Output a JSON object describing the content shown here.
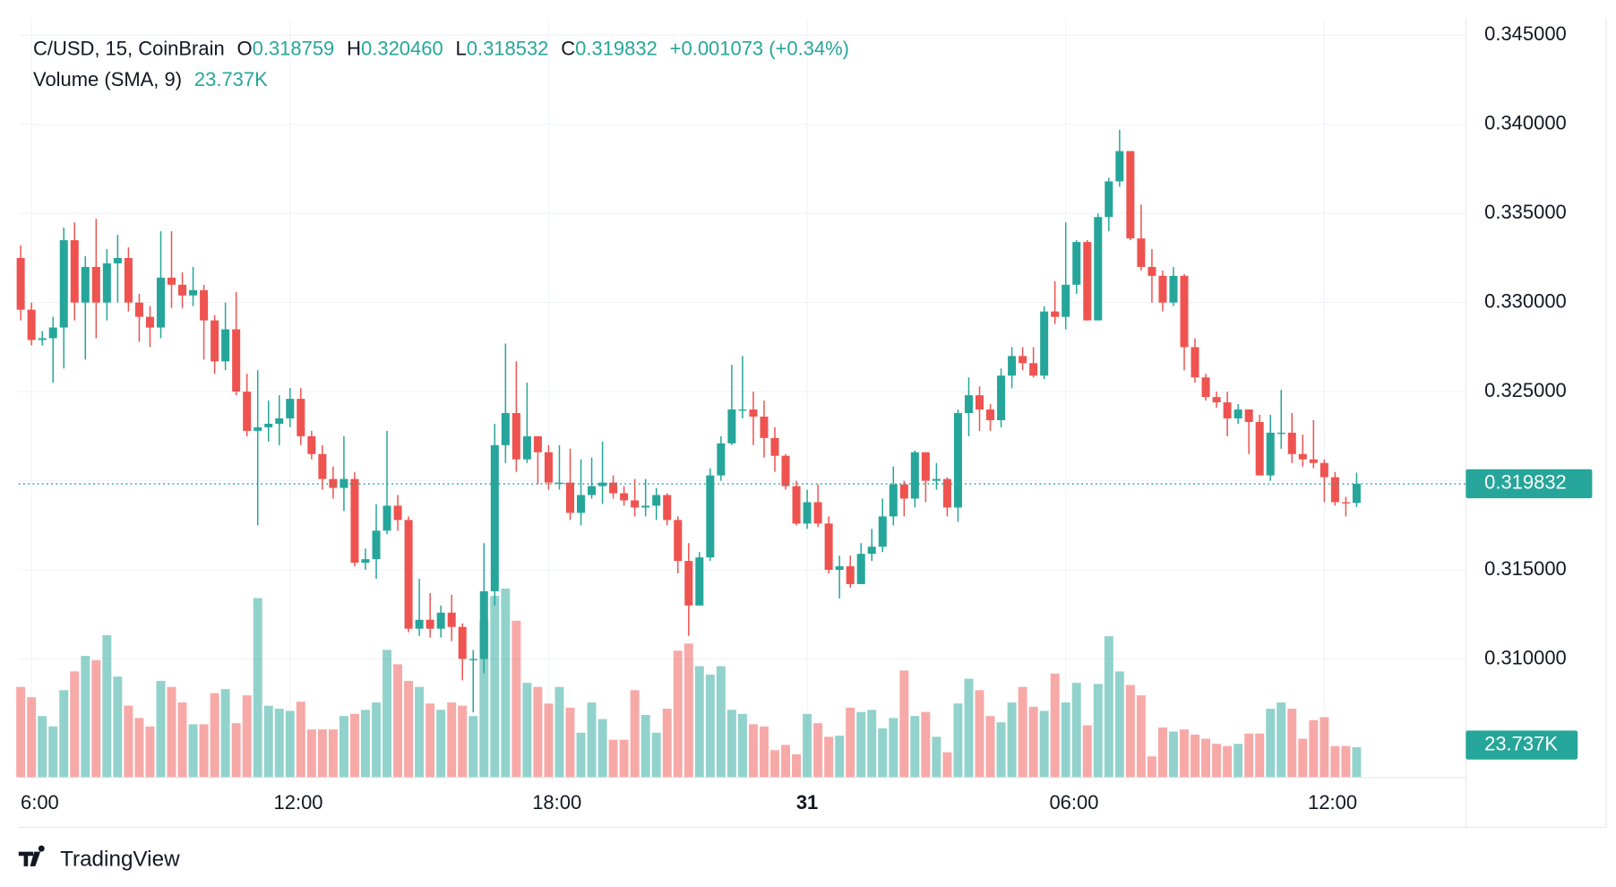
{
  "chart_data": {
    "type": "candlestick",
    "legend": {
      "symbol": "C/USD, 15, CoinBrain",
      "ohlc": [
        {
          "key": "O",
          "value": "0.318759"
        },
        {
          "key": "H",
          "value": "0.320460"
        },
        {
          "key": "L",
          "value": "0.318532"
        },
        {
          "key": "C",
          "value": "0.319832"
        }
      ],
      "change": "+0.001073 (+0.34%)",
      "volume_label": "Volume (SMA, 9)",
      "volume_value": "23.737K"
    },
    "last_price_label": "0.319832",
    "last_price": 0.319832,
    "volume_badge": "23.737K",
    "up_color": "#26a69a",
    "down_color": "#ef5350",
    "grid": true,
    "ylim": [
      0.30337,
      0.34593
    ],
    "yticks": [
      {
        "value": 0.31,
        "label": "0.310000"
      },
      {
        "value": 0.315,
        "label": "0.315000"
      },
      {
        "value": 0.32,
        "label": "0.320000"
      },
      {
        "value": 0.325,
        "label": "0.325000"
      },
      {
        "value": 0.33,
        "label": "0.330000"
      },
      {
        "value": 0.335,
        "label": "0.335000"
      },
      {
        "value": 0.34,
        "label": "0.340000"
      },
      {
        "value": 0.345,
        "label": "0.345000"
      }
    ],
    "categories": [
      null,
      "6:00",
      null,
      null,
      null,
      null,
      null,
      null,
      null,
      null,
      null,
      null,
      null,
      null,
      null,
      null,
      null,
      null,
      null,
      null,
      null,
      null,
      null,
      null,
      null,
      "12:00",
      null,
      null,
      null,
      null,
      null,
      null,
      null,
      null,
      null,
      null,
      null,
      null,
      null,
      null,
      null,
      null,
      null,
      null,
      null,
      null,
      null,
      null,
      null,
      "18:00",
      null,
      null,
      null,
      null,
      null,
      null,
      null,
      null,
      null,
      null,
      null,
      null,
      null,
      null,
      null,
      null,
      null,
      null,
      null,
      null,
      null,
      null,
      null,
      "31",
      null,
      null,
      null,
      null,
      null,
      null,
      null,
      null,
      null,
      null,
      null,
      null,
      null,
      null,
      null,
      null,
      null,
      null,
      null,
      null,
      null,
      null,
      null,
      "06:00",
      null,
      null,
      null,
      null,
      null,
      null,
      null,
      null,
      null,
      null,
      null,
      null,
      null,
      null,
      null,
      null,
      null,
      null,
      null,
      null,
      null,
      null,
      null,
      "12:00",
      null,
      null,
      null
    ],
    "open": [
      0.3325,
      0.3296,
      0.3279,
      0.328,
      0.3286,
      0.3335,
      0.33,
      0.332,
      0.33,
      0.3322,
      0.3325,
      0.33,
      0.3292,
      0.3286,
      0.3314,
      0.331,
      0.3304,
      0.3307,
      0.329,
      0.3267,
      0.3285,
      0.325,
      0.3228,
      0.323,
      0.3232,
      0.3235,
      0.3246,
      0.3225,
      0.3215,
      0.3201,
      0.3196,
      0.3201,
      0.3154,
      0.3156,
      0.3172,
      0.3186,
      0.3178,
      0.3117,
      0.3122,
      0.3117,
      0.3126,
      0.3118,
      0.31,
      0.31,
      0.3138,
      0.322,
      0.3238,
      0.3212,
      0.3225,
      0.3216,
      0.3199,
      0.3199,
      0.3182,
      0.3192,
      0.3197,
      0.3199,
      0.3193,
      0.3189,
      0.3185,
      0.3186,
      0.3192,
      0.3178,
      0.3155,
      0.313,
      0.3157,
      0.3203,
      0.3221,
      0.324,
      0.324,
      0.3236,
      0.3224,
      0.3214,
      0.3197,
      0.3176,
      0.3188,
      0.3176,
      0.315,
      0.3152,
      0.3142,
      0.3159,
      0.3163,
      0.318,
      0.3198,
      0.319,
      0.3216,
      0.32,
      0.3201,
      0.3185,
      0.3238,
      0.3248,
      0.324,
      0.3234,
      0.3259,
      0.327,
      0.3266,
      0.3259,
      0.3295,
      0.3292,
      0.331,
      0.3334,
      0.329,
      0.3348,
      0.3368,
      0.3385,
      0.3336,
      0.332,
      0.3315,
      0.33,
      0.3315,
      0.3275,
      0.3258,
      0.3247,
      0.3244,
      0.3235,
      0.324,
      0.3233,
      0.3203,
      0.3227,
      0.3227,
      0.3215,
      0.3212,
      0.321,
      0.3202,
      0.3188,
      0.318759
    ],
    "high": [
      0.3332,
      0.33,
      0.3284,
      0.3292,
      0.3342,
      0.3345,
      0.3326,
      0.3347,
      0.333,
      0.3338,
      0.3331,
      0.3305,
      0.3298,
      0.334,
      0.334,
      0.3317,
      0.332,
      0.331,
      0.3293,
      0.33,
      0.3306,
      0.326,
      0.3262,
      0.3245,
      0.3248,
      0.3252,
      0.3252,
      0.3228,
      0.322,
      0.3208,
      0.3225,
      0.3205,
      0.3162,
      0.3187,
      0.3228,
      0.3192,
      0.318,
      0.3145,
      0.3137,
      0.313,
      0.3136,
      0.312,
      0.3105,
      0.3165,
      0.3232,
      0.3277,
      0.3267,
      0.3255,
      0.3225,
      0.322,
      0.322,
      0.3218,
      0.3212,
      0.3213,
      0.3222,
      0.3203,
      0.3197,
      0.3201,
      0.3201,
      0.3196,
      0.3193,
      0.318,
      0.3165,
      0.316,
      0.3207,
      0.3225,
      0.3265,
      0.327,
      0.325,
      0.3245,
      0.323,
      0.3215,
      0.32,
      0.3195,
      0.3198,
      0.318,
      0.3158,
      0.3158,
      0.3165,
      0.3173,
      0.319,
      0.3208,
      0.32,
      0.3217,
      0.3216,
      0.321,
      0.3202,
      0.324,
      0.3258,
      0.3253,
      0.3243,
      0.3263,
      0.3275,
      0.3275,
      0.3275,
      0.3298,
      0.3312,
      0.3345,
      0.3335,
      0.3335,
      0.335,
      0.337,
      0.3397,
      0.3385,
      0.3355,
      0.333,
      0.3318,
      0.332,
      0.3316,
      0.328,
      0.326,
      0.325,
      0.325,
      0.3243,
      0.324,
      0.3237,
      0.3237,
      0.3251,
      0.3238,
      0.3226,
      0.3234,
      0.3212,
      0.3205,
      0.3191,
      0.32046
    ],
    "low": [
      0.329,
      0.3276,
      0.3276,
      0.3255,
      0.3263,
      0.329,
      0.3268,
      0.328,
      0.329,
      0.33,
      0.3295,
      0.3278,
      0.3275,
      0.328,
      0.3297,
      0.3297,
      0.3298,
      0.3268,
      0.326,
      0.3262,
      0.3248,
      0.3225,
      0.3175,
      0.3222,
      0.322,
      0.323,
      0.322,
      0.3212,
      0.3195,
      0.319,
      0.3183,
      0.3152,
      0.315,
      0.3145,
      0.317,
      0.3172,
      0.3115,
      0.3113,
      0.3112,
      0.3112,
      0.311,
      0.3088,
      0.307,
      0.3092,
      0.313,
      0.321,
      0.3205,
      0.321,
      0.3198,
      0.3195,
      0.3195,
      0.3178,
      0.3175,
      0.319,
      0.3187,
      0.319,
      0.3186,
      0.318,
      0.318,
      0.3178,
      0.3175,
      0.3148,
      0.3113,
      0.313,
      0.3155,
      0.32,
      0.322,
      0.3235,
      0.322,
      0.3213,
      0.3205,
      0.3195,
      0.3175,
      0.3173,
      0.3174,
      0.3148,
      0.3134,
      0.314,
      0.3142,
      0.3155,
      0.316,
      0.3175,
      0.318,
      0.3185,
      0.3188,
      0.3195,
      0.318,
      0.3177,
      0.3225,
      0.3228,
      0.3228,
      0.323,
      0.3252,
      0.3262,
      0.3258,
      0.3257,
      0.3288,
      0.3285,
      0.3305,
      0.329,
      0.329,
      0.334,
      0.3365,
      0.3335,
      0.3318,
      0.33,
      0.3295,
      0.3298,
      0.3262,
      0.3255,
      0.3245,
      0.3241,
      0.3225,
      0.3232,
      0.3215,
      0.3203,
      0.32,
      0.3218,
      0.321,
      0.3208,
      0.3207,
      0.3188,
      0.3186,
      0.318,
      0.318532
    ],
    "close": [
      0.3296,
      0.3279,
      0.328,
      0.3286,
      0.3335,
      0.33,
      0.332,
      0.33,
      0.3322,
      0.3325,
      0.33,
      0.3292,
      0.3286,
      0.3314,
      0.331,
      0.3304,
      0.3307,
      0.329,
      0.3267,
      0.3285,
      0.325,
      0.3228,
      0.323,
      0.3232,
      0.3235,
      0.3246,
      0.3225,
      0.3215,
      0.3201,
      0.3196,
      0.3201,
      0.3154,
      0.3156,
      0.3172,
      0.3186,
      0.3178,
      0.3117,
      0.3122,
      0.3117,
      0.3126,
      0.3118,
      0.31,
      0.31,
      0.3138,
      0.322,
      0.3238,
      0.3212,
      0.3225,
      0.3216,
      0.3199,
      0.3199,
      0.3182,
      0.3192,
      0.3197,
      0.3199,
      0.3193,
      0.3189,
      0.3185,
      0.3186,
      0.3192,
      0.3178,
      0.3155,
      0.313,
      0.3157,
      0.3203,
      0.3221,
      0.324,
      0.324,
      0.3236,
      0.3224,
      0.3214,
      0.3197,
      0.3176,
      0.3188,
      0.3176,
      0.315,
      0.3152,
      0.3142,
      0.3159,
      0.3163,
      0.318,
      0.3198,
      0.319,
      0.3216,
      0.32,
      0.3201,
      0.3185,
      0.3238,
      0.3248,
      0.324,
      0.3234,
      0.3259,
      0.327,
      0.3266,
      0.3259,
      0.3295,
      0.3292,
      0.331,
      0.3334,
      0.329,
      0.3348,
      0.3368,
      0.3385,
      0.3336,
      0.332,
      0.3315,
      0.33,
      0.3315,
      0.3275,
      0.3258,
      0.3247,
      0.3244,
      0.3235,
      0.324,
      0.3233,
      0.3203,
      0.3227,
      0.3227,
      0.3215,
      0.3212,
      0.321,
      0.3202,
      0.3188,
      0.318759,
      0.319832
    ],
    "volume": [
      41.8,
      37.0,
      28.3,
      23.5,
      40.3,
      49.0,
      56.2,
      54.2,
      65.8,
      46.6,
      33.1,
      27.4,
      23.5,
      44.6,
      41.8,
      34.6,
      24.5,
      24.5,
      38.9,
      40.8,
      25.0,
      37.9,
      83.0,
      33.1,
      31.7,
      30.7,
      35.0,
      22.1,
      22.1,
      22.1,
      28.3,
      29.3,
      31.2,
      34.6,
      59.0,
      52.3,
      44.6,
      41.8,
      34.1,
      31.2,
      34.6,
      33.1,
      28.3,
      72.5,
      84.0,
      87.4,
      72.5,
      43.7,
      41.8,
      34.1,
      41.8,
      32.2,
      20.6,
      34.6,
      26.9,
      17.3,
      17.3,
      40.3,
      28.8,
      20.6,
      31.7,
      58.6,
      61.9,
      51.4,
      47.5,
      51.4,
      31.2,
      29.3,
      24.5,
      23.5,
      12.5,
      14.9,
      10.6,
      29.3,
      25.0,
      18.7,
      19.2,
      32.2,
      30.2,
      31.2,
      22.6,
      27.4,
      49.4,
      28.3,
      30.2,
      18.7,
      11.5,
      34.1,
      45.6,
      40.3,
      28.3,
      25.4,
      34.6,
      41.8,
      32.6,
      30.7,
      48.0,
      34.6,
      43.7,
      24.0,
      43.2,
      65.3,
      49.0,
      42.7,
      37.9,
      9.6,
      23.0,
      21.1,
      22.1,
      19.7,
      17.8,
      15.4,
      14.4,
      15.4,
      20.2,
      20.2,
      31.7,
      34.6,
      31.7,
      17.8,
      26.4,
      27.8,
      14.4,
      14.4,
      13.9
    ]
  },
  "footer": {
    "brand": "TradingView"
  }
}
